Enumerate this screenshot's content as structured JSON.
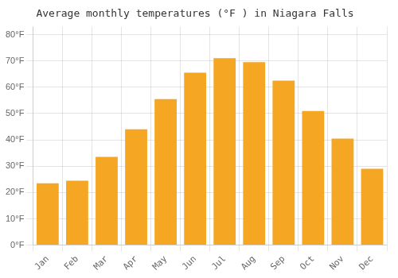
{
  "chart_data": {
    "type": "bar",
    "title": "Average monthly temperatures (°F ) in Niagara Falls",
    "categories": [
      "Jan",
      "Feb",
      "Mar",
      "Apr",
      "May",
      "Jun",
      "Jul",
      "Aug",
      "Sep",
      "Oct",
      "Nov",
      "Dec"
    ],
    "values": [
      23.5,
      24.5,
      33.5,
      44.0,
      55.5,
      65.5,
      71.0,
      69.5,
      62.5,
      51.0,
      40.5,
      29.0
    ],
    "color": "#F5A623",
    "ylim": [
      0,
      83
    ],
    "yticks": [
      {
        "value": 0,
        "label": "0°F"
      },
      {
        "value": 10,
        "label": "10°F"
      },
      {
        "value": 20,
        "label": "20°F"
      },
      {
        "value": 30,
        "label": "30°F"
      },
      {
        "value": 40,
        "label": "40°F"
      },
      {
        "value": 50,
        "label": "50°F"
      },
      {
        "value": 60,
        "label": "60°F"
      },
      {
        "value": 70,
        "label": "70°F"
      },
      {
        "value": 80,
        "label": "80°F"
      }
    ],
    "grid": true
  }
}
